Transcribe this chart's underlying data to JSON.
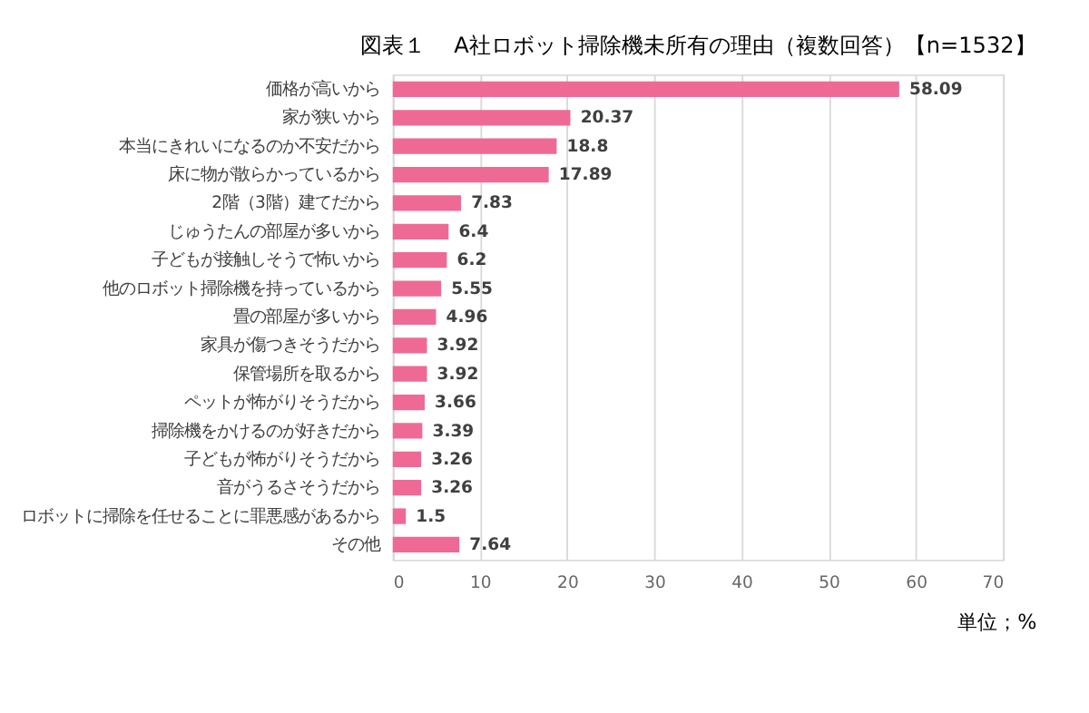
{
  "chart_data": {
    "type": "bar",
    "orientation": "horizontal",
    "title": "図表１　 A社ロボット掃除機未所有の理由（複数回答）【n=1532】",
    "categories": [
      "価格が高いから",
      "家が狭いから",
      "本当にきれいになるのか不安だから",
      "床に物が散らかっているから",
      "2階（3階）建てだから",
      "じゅうたんの部屋が多いから",
      "子どもが接触しそうで怖いから",
      "他のロボット掃除機を持っているから",
      "畳の部屋が多いから",
      "家具が傷つきそうだから",
      "保管場所を取るから",
      "ペットが怖がりそうだから",
      "掃除機をかけるのが好きだから",
      "子どもが怖がりそうだから",
      "音がうるさそうだから",
      "ロボットに掃除を任せることに罪悪感があるから",
      "その他"
    ],
    "values": [
      58.09,
      20.37,
      18.8,
      17.89,
      7.83,
      6.4,
      6.2,
      5.55,
      4.96,
      3.92,
      3.92,
      3.66,
      3.39,
      3.26,
      3.26,
      1.5,
      7.64
    ],
    "color": "#ee6a94",
    "xlim": [
      0,
      70
    ],
    "xticks": [
      0,
      10,
      20,
      30,
      40,
      50,
      60,
      70
    ],
    "grid": "x",
    "data_labels": true,
    "annotations": [
      "単位；%"
    ]
  }
}
